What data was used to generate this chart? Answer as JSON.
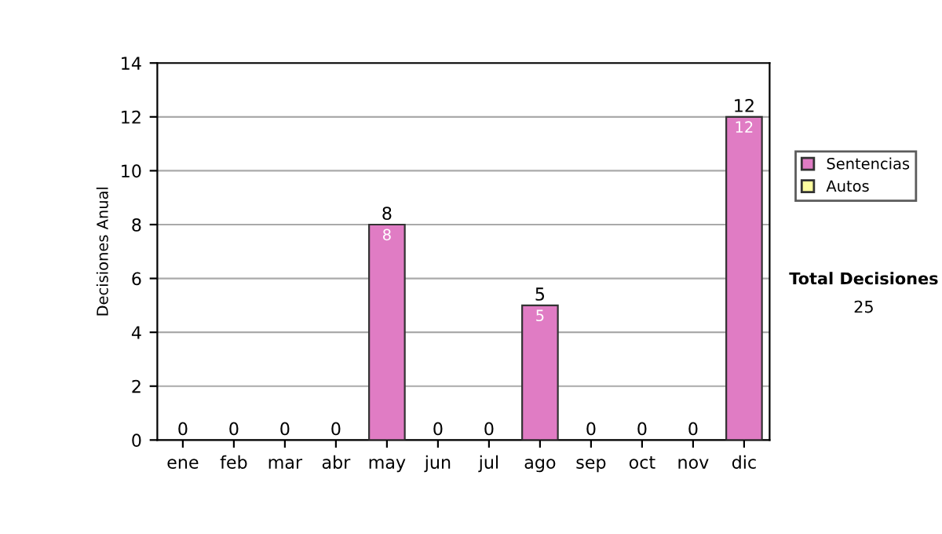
{
  "chart_data": {
    "type": "bar",
    "stacked": true,
    "ylabel": "Decisiones Anual",
    "categories": [
      "ene",
      "feb",
      "mar",
      "abr",
      "may",
      "jun",
      "jul",
      "ago",
      "sep",
      "oct",
      "nov",
      "dic"
    ],
    "series": [
      {
        "name": "Sentencias",
        "color": "#e07cc4",
        "values": [
          0,
          0,
          0,
          0,
          8,
          0,
          0,
          5,
          0,
          0,
          0,
          12
        ],
        "value_labels": [
          null,
          null,
          null,
          null,
          "8",
          null,
          null,
          "5",
          null,
          null,
          null,
          "12"
        ]
      },
      {
        "name": "Autos",
        "color": "#ffffa0",
        "values": [
          0,
          0,
          0,
          0,
          0,
          0,
          0,
          0,
          0,
          0,
          0,
          0
        ]
      }
    ],
    "totals": [
      "0",
      "0",
      "0",
      "0",
      "8",
      "0",
      "0",
      "5",
      "0",
      "0",
      "0",
      "12"
    ],
    "ylim": [
      0,
      14
    ],
    "yticks": [
      0,
      2,
      4,
      6,
      8,
      10,
      12,
      14
    ],
    "grid": "y",
    "legend": "right",
    "annotations": [
      "Total Decisiones",
      "25"
    ]
  }
}
